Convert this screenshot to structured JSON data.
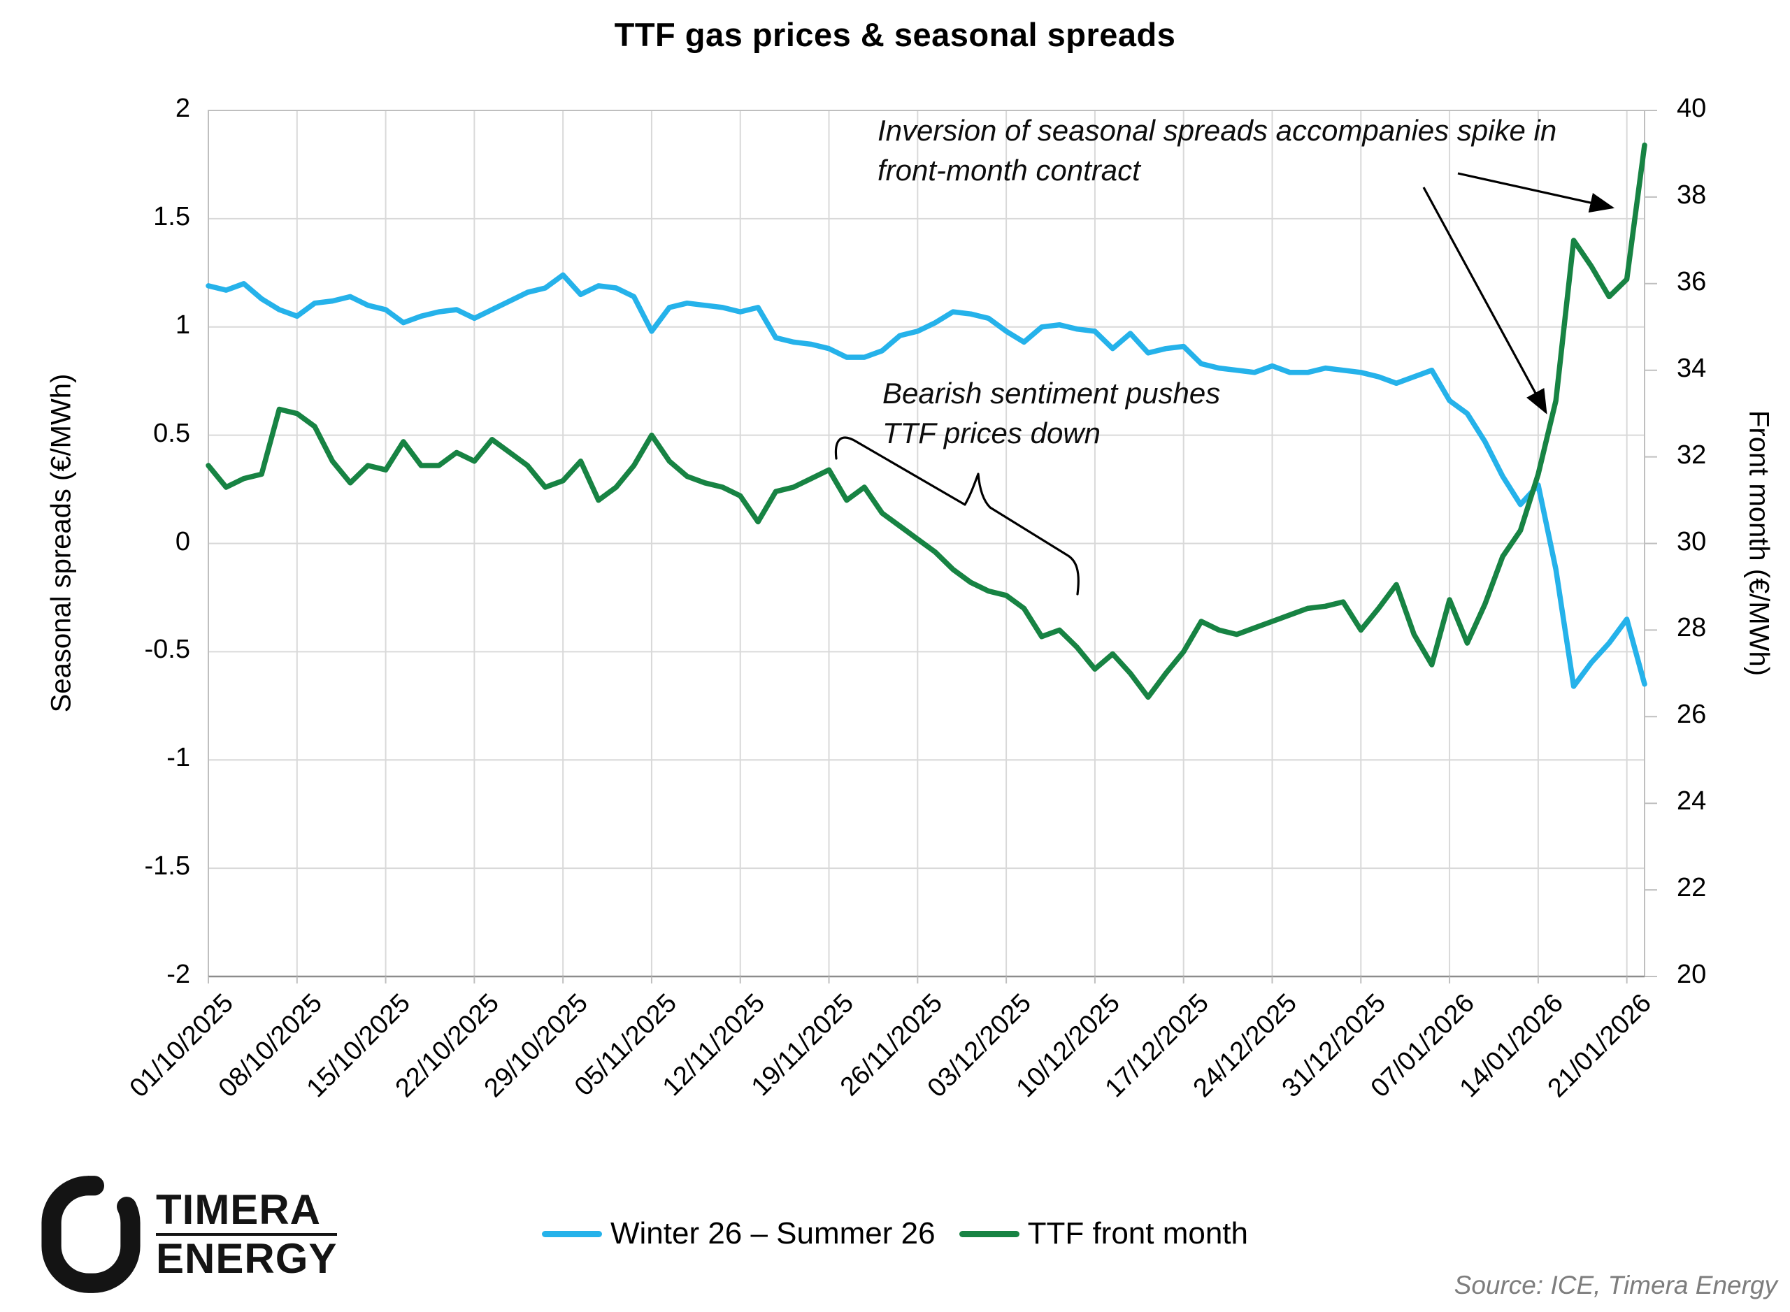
{
  "title": "TTF gas prices & seasonal spreads",
  "axes": {
    "left": {
      "label": "Seasonal spreads (€/MWh)",
      "tick_values": [
        2,
        1.5,
        1,
        0.5,
        0,
        -0.5,
        -1,
        -1.5,
        -2
      ],
      "tick_labels": [
        "2",
        "1.5",
        "1",
        "0.5",
        "0",
        "-0.5",
        "-1",
        "-1.5",
        "-2"
      ]
    },
    "right": {
      "label": "Front month (€/MWh)",
      "tick_values": [
        40,
        38,
        36,
        34,
        32,
        30,
        28,
        26,
        24,
        22,
        20
      ],
      "tick_labels": [
        "40",
        "38",
        "36",
        "34",
        "32",
        "30",
        "28",
        "26",
        "24",
        "22",
        "20"
      ]
    },
    "x": {
      "tick_indices": [
        0,
        5,
        10,
        15,
        20,
        25,
        30,
        35,
        40,
        45,
        50,
        55,
        60,
        65,
        70,
        75,
        80
      ],
      "tick_labels": [
        "01/10/2025",
        "08/10/2025",
        "15/10/2025",
        "22/10/2025",
        "29/10/2025",
        "05/11/2025",
        "12/11/2025",
        "19/11/2025",
        "26/11/2025",
        "03/12/2025",
        "10/12/2025",
        "17/12/2025",
        "24/12/2025",
        "31/12/2025",
        "07/01/2026",
        "14/01/2026",
        "21/01/2026"
      ]
    }
  },
  "annotations": {
    "inversion": {
      "line1": "Inversion of seasonal spreads accompanies spike in",
      "line2": "front-month contract"
    },
    "bearish": {
      "line1": "Bearish sentiment pushes",
      "line2": "TTF prices down"
    }
  },
  "legend": [
    {
      "label": "Winter 26 – Summer 26",
      "color": "#25b2ea"
    },
    {
      "label": "TTF front month",
      "color": "#178343"
    }
  ],
  "logo": {
    "line1": "TIMERA",
    "line2": "ENERGY"
  },
  "source": "Source: ICE, Timera Energy",
  "colors": {
    "gridline": "#d9d9d9",
    "border": "#bfbfbf",
    "bottom_axis": "#8c8c8c",
    "annotation": "#000000",
    "source_text": "#7d7d7d"
  },
  "chart_data": {
    "type": "line",
    "title": "TTF gas prices & seasonal spreads",
    "x": [
      "01/10/2025",
      "02/10/2025",
      "03/10/2025",
      "06/10/2025",
      "07/10/2025",
      "08/10/2025",
      "09/10/2025",
      "10/10/2025",
      "13/10/2025",
      "14/10/2025",
      "15/10/2025",
      "16/10/2025",
      "17/10/2025",
      "20/10/2025",
      "21/10/2025",
      "22/10/2025",
      "23/10/2025",
      "24/10/2025",
      "27/10/2025",
      "28/10/2025",
      "29/10/2025",
      "30/10/2025",
      "31/10/2025",
      "03/11/2025",
      "04/11/2025",
      "05/11/2025",
      "06/11/2025",
      "07/11/2025",
      "10/11/2025",
      "11/11/2025",
      "12/11/2025",
      "13/11/2025",
      "14/11/2025",
      "17/11/2025",
      "18/11/2025",
      "19/11/2025",
      "20/11/2025",
      "21/11/2025",
      "24/11/2025",
      "25/11/2025",
      "26/11/2025",
      "27/11/2025",
      "28/11/2025",
      "01/12/2025",
      "02/12/2025",
      "03/12/2025",
      "04/12/2025",
      "05/12/2025",
      "08/12/2025",
      "09/12/2025",
      "10/12/2025",
      "11/12/2025",
      "12/12/2025",
      "15/12/2025",
      "16/12/2025",
      "17/12/2025",
      "18/12/2025",
      "19/12/2025",
      "22/12/2025",
      "23/12/2025",
      "24/12/2025",
      "25/12/2025",
      "26/12/2025",
      "29/12/2025",
      "30/12/2025",
      "31/12/2025",
      "01/01/2026",
      "02/01/2026",
      "05/01/2026",
      "06/01/2026",
      "07/01/2026",
      "08/01/2026",
      "09/01/2026",
      "12/01/2026",
      "13/01/2026",
      "14/01/2026",
      "15/01/2026",
      "16/01/2026",
      "19/01/2026",
      "20/01/2026",
      "21/01/2026",
      "22/01/2026"
    ],
    "left_axis": {
      "label": "Seasonal spreads (€/MWh)",
      "min": -2,
      "max": 2,
      "tick_step": 0.5
    },
    "right_axis": {
      "label": "Front month (€/MWh)",
      "min": 20,
      "max": 40,
      "tick_step": 2
    },
    "legend_position": "bottom",
    "grid": true,
    "series": [
      {
        "name": "Winter 26 – Summer 26",
        "axis": "left",
        "color": "#25b2ea",
        "values": [
          1.19,
          1.17,
          1.2,
          1.13,
          1.08,
          1.05,
          1.11,
          1.12,
          1.14,
          1.1,
          1.08,
          1.02,
          1.05,
          1.07,
          1.08,
          1.04,
          1.08,
          1.12,
          1.16,
          1.18,
          1.24,
          1.15,
          1.19,
          1.18,
          1.14,
          0.98,
          1.09,
          1.11,
          1.1,
          1.09,
          1.07,
          1.09,
          0.95,
          0.93,
          0.92,
          0.9,
          0.86,
          0.86,
          0.89,
          0.96,
          0.98,
          1.02,
          1.07,
          1.06,
          1.04,
          0.98,
          0.93,
          1.0,
          1.01,
          0.99,
          0.98,
          0.9,
          0.97,
          0.88,
          0.9,
          0.91,
          0.83,
          0.81,
          0.8,
          0.79,
          0.82,
          0.79,
          0.79,
          0.81,
          0.8,
          0.79,
          0.77,
          0.74,
          0.77,
          0.8,
          0.66,
          0.6,
          0.47,
          0.31,
          0.18,
          0.27,
          -0.12,
          -0.66,
          -0.55,
          -0.46,
          -0.35,
          -0.65
        ]
      },
      {
        "name": "TTF front month",
        "axis": "right",
        "color": "#178343",
        "values": [
          31.8,
          31.3,
          31.5,
          31.6,
          33.1,
          33.0,
          32.7,
          31.9,
          31.4,
          31.8,
          31.7,
          32.35,
          31.8,
          31.8,
          32.1,
          31.9,
          32.4,
          32.1,
          31.8,
          31.3,
          31.45,
          31.9,
          31.0,
          31.3,
          31.8,
          32.5,
          31.9,
          31.55,
          31.4,
          31.3,
          31.1,
          30.5,
          31.2,
          31.3,
          31.5,
          31.7,
          31.0,
          31.3,
          30.7,
          30.4,
          30.1,
          29.8,
          29.4,
          29.1,
          28.9,
          28.8,
          28.5,
          27.85,
          28.0,
          27.6,
          27.1,
          27.45,
          27.0,
          26.45,
          27.0,
          27.5,
          28.2,
          28.0,
          27.9,
          28.05,
          28.2,
          28.35,
          28.5,
          28.55,
          28.65,
          28.0,
          28.5,
          29.05,
          27.9,
          27.2,
          28.7,
          27.7,
          28.6,
          29.7,
          30.3,
          31.6,
          33.3,
          37.0,
          36.4,
          35.7,
          36.1,
          39.2
        ]
      }
    ],
    "annotations": [
      "Inversion of seasonal spreads accompanies spike in front-month contract",
      "Bearish sentiment pushes TTF prices down"
    ]
  }
}
